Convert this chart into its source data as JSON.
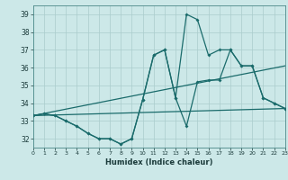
{
  "xlabel": "Humidex (Indice chaleur)",
  "bg_color": "#cce8e8",
  "grid_color": "#aacccc",
  "line_color": "#1a6b6b",
  "xlim": [
    0,
    23
  ],
  "ylim": [
    31.5,
    39.5
  ],
  "yticks": [
    32,
    33,
    34,
    35,
    36,
    37,
    38,
    39
  ],
  "xticks": [
    0,
    1,
    2,
    3,
    4,
    5,
    6,
    7,
    8,
    9,
    10,
    11,
    12,
    13,
    14,
    15,
    16,
    17,
    18,
    19,
    20,
    21,
    22,
    23
  ],
  "line1_x": [
    0,
    1,
    2,
    3,
    4,
    5,
    6,
    7,
    8,
    9,
    10,
    11,
    12,
    13,
    14,
    15,
    16,
    17,
    18,
    19,
    20,
    21,
    22,
    23
  ],
  "line1_y": [
    33.3,
    33.4,
    33.3,
    33.0,
    32.7,
    32.3,
    32.0,
    32.0,
    31.7,
    32.0,
    34.2,
    36.7,
    37.0,
    34.3,
    39.0,
    38.7,
    36.7,
    37.0,
    37.0,
    36.1,
    36.1,
    34.3,
    34.0,
    33.7
  ],
  "line2_x": [
    0,
    1,
    2,
    3,
    4,
    5,
    6,
    7,
    8,
    9,
    10,
    11,
    12,
    13,
    14,
    15,
    16,
    17,
    18,
    19,
    20,
    21,
    22,
    23
  ],
  "line2_y": [
    33.3,
    33.4,
    33.3,
    33.0,
    32.7,
    32.3,
    32.0,
    32.0,
    31.7,
    32.0,
    34.2,
    36.7,
    37.0,
    34.3,
    32.7,
    35.2,
    35.3,
    35.3,
    37.0,
    36.1,
    36.1,
    34.3,
    34.0,
    33.7
  ],
  "line3_x": [
    0,
    23
  ],
  "line3_y": [
    33.3,
    33.7
  ],
  "line4_x": [
    0,
    23
  ],
  "line4_y": [
    33.3,
    36.1
  ]
}
